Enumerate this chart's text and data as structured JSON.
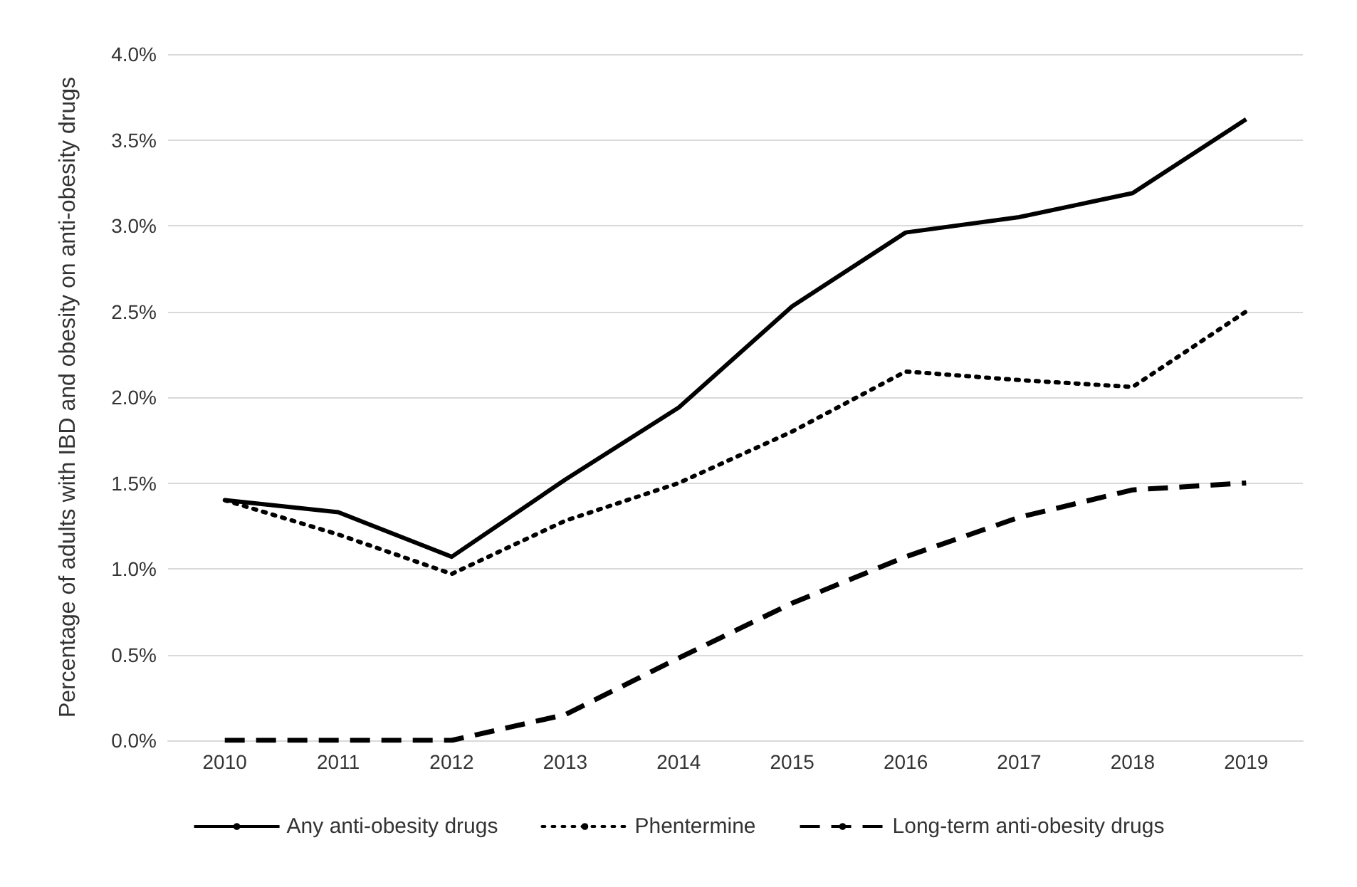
{
  "chart_data": {
    "type": "line",
    "ylabel": "Percentage of adults with IBD and obesity on anti-obesity drugs",
    "categories": [
      "2010",
      "2011",
      "2012",
      "2013",
      "2014",
      "2015",
      "2016",
      "2017",
      "2018",
      "2019"
    ],
    "series": [
      {
        "name": "Any anti-obesity drugs",
        "color": "#000000",
        "line_style": "solid",
        "values": [
          1.4,
          1.33,
          1.07,
          1.52,
          1.94,
          2.53,
          2.96,
          3.05,
          3.19,
          3.62
        ]
      },
      {
        "name": "Phentermine",
        "color": "#000000",
        "line_style": "dotted",
        "values": [
          1.4,
          1.2,
          0.97,
          1.28,
          1.5,
          1.8,
          2.15,
          2.1,
          2.06,
          2.5
        ]
      },
      {
        "name": "Long-term anti-obesity drugs",
        "color": "#000000",
        "line_style": "dashed",
        "values": [
          0,
          0,
          0,
          0.15,
          0.48,
          0.8,
          1.07,
          1.3,
          1.46,
          1.5
        ]
      }
    ],
    "ylim": [
      0,
      4
    ],
    "yticks": [
      {
        "value": 0,
        "label": "0.0%"
      },
      {
        "value": 0.5,
        "label": "0.5%"
      },
      {
        "value": 1,
        "label": "1.0%"
      },
      {
        "value": 1.5,
        "label": "1.5%"
      },
      {
        "value": 2,
        "label": "2.0%"
      },
      {
        "value": 2.5,
        "label": "2.5%"
      },
      {
        "value": 3,
        "label": "3.0%"
      },
      {
        "value": 3.5,
        "label": "3.5%"
      },
      {
        "value": 4,
        "label": "4.0%"
      }
    ],
    "grid": "y",
    "legend": "bottom",
    "marker": "none"
  }
}
